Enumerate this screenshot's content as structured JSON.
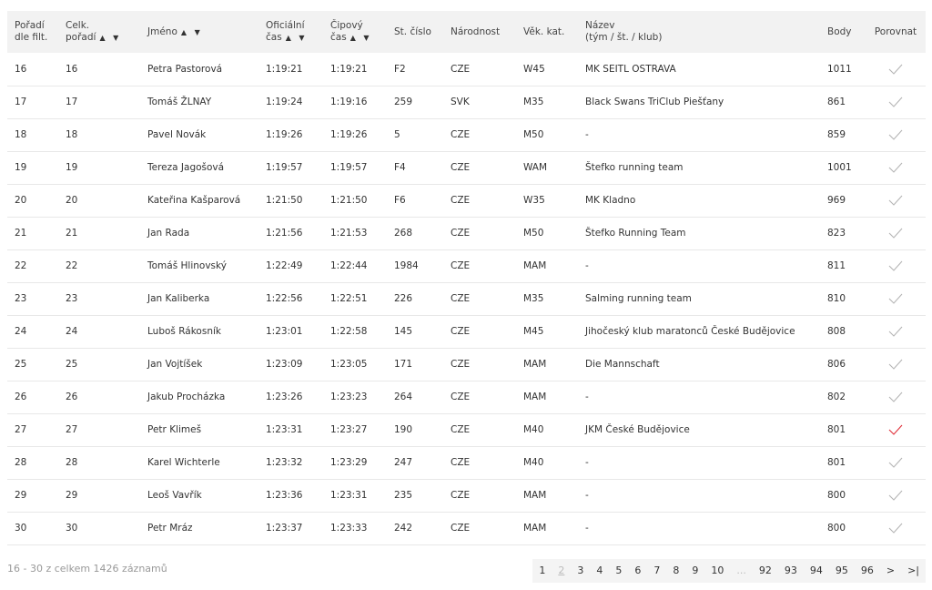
{
  "table": {
    "headers": [
      {
        "line1": "Pořadí",
        "line2": "dle filt.",
        "sort": ""
      },
      {
        "line1": "Celk.",
        "line2": "pořadí",
        "sort": "▲ ▼"
      },
      {
        "line1": "Jméno",
        "line2": "",
        "sort": "▲ ▼"
      },
      {
        "line1": "Oficiální",
        "line2": "čas",
        "sort": "▲ ▼"
      },
      {
        "line1": "Čipový",
        "line2": "čas",
        "sort": "▲ ▼"
      },
      {
        "line1": "St. číslo",
        "line2": "",
        "sort": ""
      },
      {
        "line1": "Národnost",
        "line2": "",
        "sort": ""
      },
      {
        "line1": "Věk. kat.",
        "line2": "",
        "sort": ""
      },
      {
        "line1": "Název",
        "line2": "(tým / št. / klub)",
        "sort": ""
      },
      {
        "line1": "Body",
        "line2": "",
        "sort": ""
      },
      {
        "line1": "Porovnat",
        "line2": "",
        "sort": ""
      }
    ],
    "rows": [
      {
        "filt": "16",
        "overall": "16",
        "name": "Petra Pastorová",
        "official": "1:19:21",
        "chip": "1:19:21",
        "bib": "F2",
        "nat": "CZE",
        "cat": "W45",
        "team": "MK SEITL OSTRAVA",
        "points": "1011",
        "compare": false
      },
      {
        "filt": "17",
        "overall": "17",
        "name": "Tomáš ŽLNAY",
        "official": "1:19:24",
        "chip": "1:19:16",
        "bib": "259",
        "nat": "SVK",
        "cat": "M35",
        "team": "Black Swans TriClub Piešťany",
        "points": "861",
        "compare": false
      },
      {
        "filt": "18",
        "overall": "18",
        "name": "Pavel Novák",
        "official": "1:19:26",
        "chip": "1:19:26",
        "bib": "5",
        "nat": "CZE",
        "cat": "M50",
        "team": "-",
        "points": "859",
        "compare": false
      },
      {
        "filt": "19",
        "overall": "19",
        "name": "Tereza Jagošová",
        "official": "1:19:57",
        "chip": "1:19:57",
        "bib": "F4",
        "nat": "CZE",
        "cat": "WAM",
        "team": "Štefko running team",
        "points": "1001",
        "compare": false
      },
      {
        "filt": "20",
        "overall": "20",
        "name": "Kateřina Kašparová",
        "official": "1:21:50",
        "chip": "1:21:50",
        "bib": "F6",
        "nat": "CZE",
        "cat": "W35",
        "team": "MK Kladno",
        "points": "969",
        "compare": false
      },
      {
        "filt": "21",
        "overall": "21",
        "name": "Jan Rada",
        "official": "1:21:56",
        "chip": "1:21:53",
        "bib": "268",
        "nat": "CZE",
        "cat": "M50",
        "team": "Štefko Running Team",
        "points": "823",
        "compare": false
      },
      {
        "filt": "22",
        "overall": "22",
        "name": "Tomáš Hlinovský",
        "official": "1:22:49",
        "chip": "1:22:44",
        "bib": "1984",
        "nat": "CZE",
        "cat": "MAM",
        "team": "-",
        "points": "811",
        "compare": false
      },
      {
        "filt": "23",
        "overall": "23",
        "name": "Jan Kaliberka",
        "official": "1:22:56",
        "chip": "1:22:51",
        "bib": "226",
        "nat": "CZE",
        "cat": "M35",
        "team": "Salming running team",
        "points": "810",
        "compare": false
      },
      {
        "filt": "24",
        "overall": "24",
        "name": "Luboš Rákosník",
        "official": "1:23:01",
        "chip": "1:22:58",
        "bib": "145",
        "nat": "CZE",
        "cat": "M45",
        "team": "Jihočeský klub maratonců České Budějovice",
        "points": "808",
        "compare": false
      },
      {
        "filt": "25",
        "overall": "25",
        "name": "Jan Vojtíšek",
        "official": "1:23:09",
        "chip": "1:23:05",
        "bib": "171",
        "nat": "CZE",
        "cat": "MAM",
        "team": "Die Mannschaft",
        "points": "806",
        "compare": false
      },
      {
        "filt": "26",
        "overall": "26",
        "name": "Jakub Procházka",
        "official": "1:23:26",
        "chip": "1:23:23",
        "bib": "264",
        "nat": "CZE",
        "cat": "MAM",
        "team": "-",
        "points": "802",
        "compare": false
      },
      {
        "filt": "27",
        "overall": "27",
        "name": "Petr Klimeš",
        "official": "1:23:31",
        "chip": "1:23:27",
        "bib": "190",
        "nat": "CZE",
        "cat": "M40",
        "team": "JKM České Budějovice",
        "points": "801",
        "compare": true
      },
      {
        "filt": "28",
        "overall": "28",
        "name": "Karel Wichterle",
        "official": "1:23:32",
        "chip": "1:23:29",
        "bib": "247",
        "nat": "CZE",
        "cat": "M40",
        "team": "-",
        "points": "801",
        "compare": false
      },
      {
        "filt": "29",
        "overall": "29",
        "name": "Leoš Vavřík",
        "official": "1:23:36",
        "chip": "1:23:31",
        "bib": "235",
        "nat": "CZE",
        "cat": "MAM",
        "team": "-",
        "points": "800",
        "compare": false
      },
      {
        "filt": "30",
        "overall": "30",
        "name": "Petr Mráz",
        "official": "1:23:37",
        "chip": "1:23:33",
        "bib": "242",
        "nat": "CZE",
        "cat": "MAM",
        "team": "-",
        "points": "800",
        "compare": false
      }
    ]
  },
  "footer": {
    "summary": "16 - 30 z celkem 1426 záznamů"
  },
  "pagination": {
    "pages": [
      "1",
      "2",
      "3",
      "4",
      "5",
      "6",
      "7",
      "8",
      "9",
      "10",
      "...",
      "92",
      "93",
      "94",
      "95",
      "96",
      ">",
      ">|"
    ],
    "current": "2"
  },
  "colors": {
    "check_default": "#b5b5b5",
    "check_active": "#e0303a",
    "header_bg": "#f2f2f2"
  },
  "icons": {
    "compare": "checkmark-icon"
  }
}
